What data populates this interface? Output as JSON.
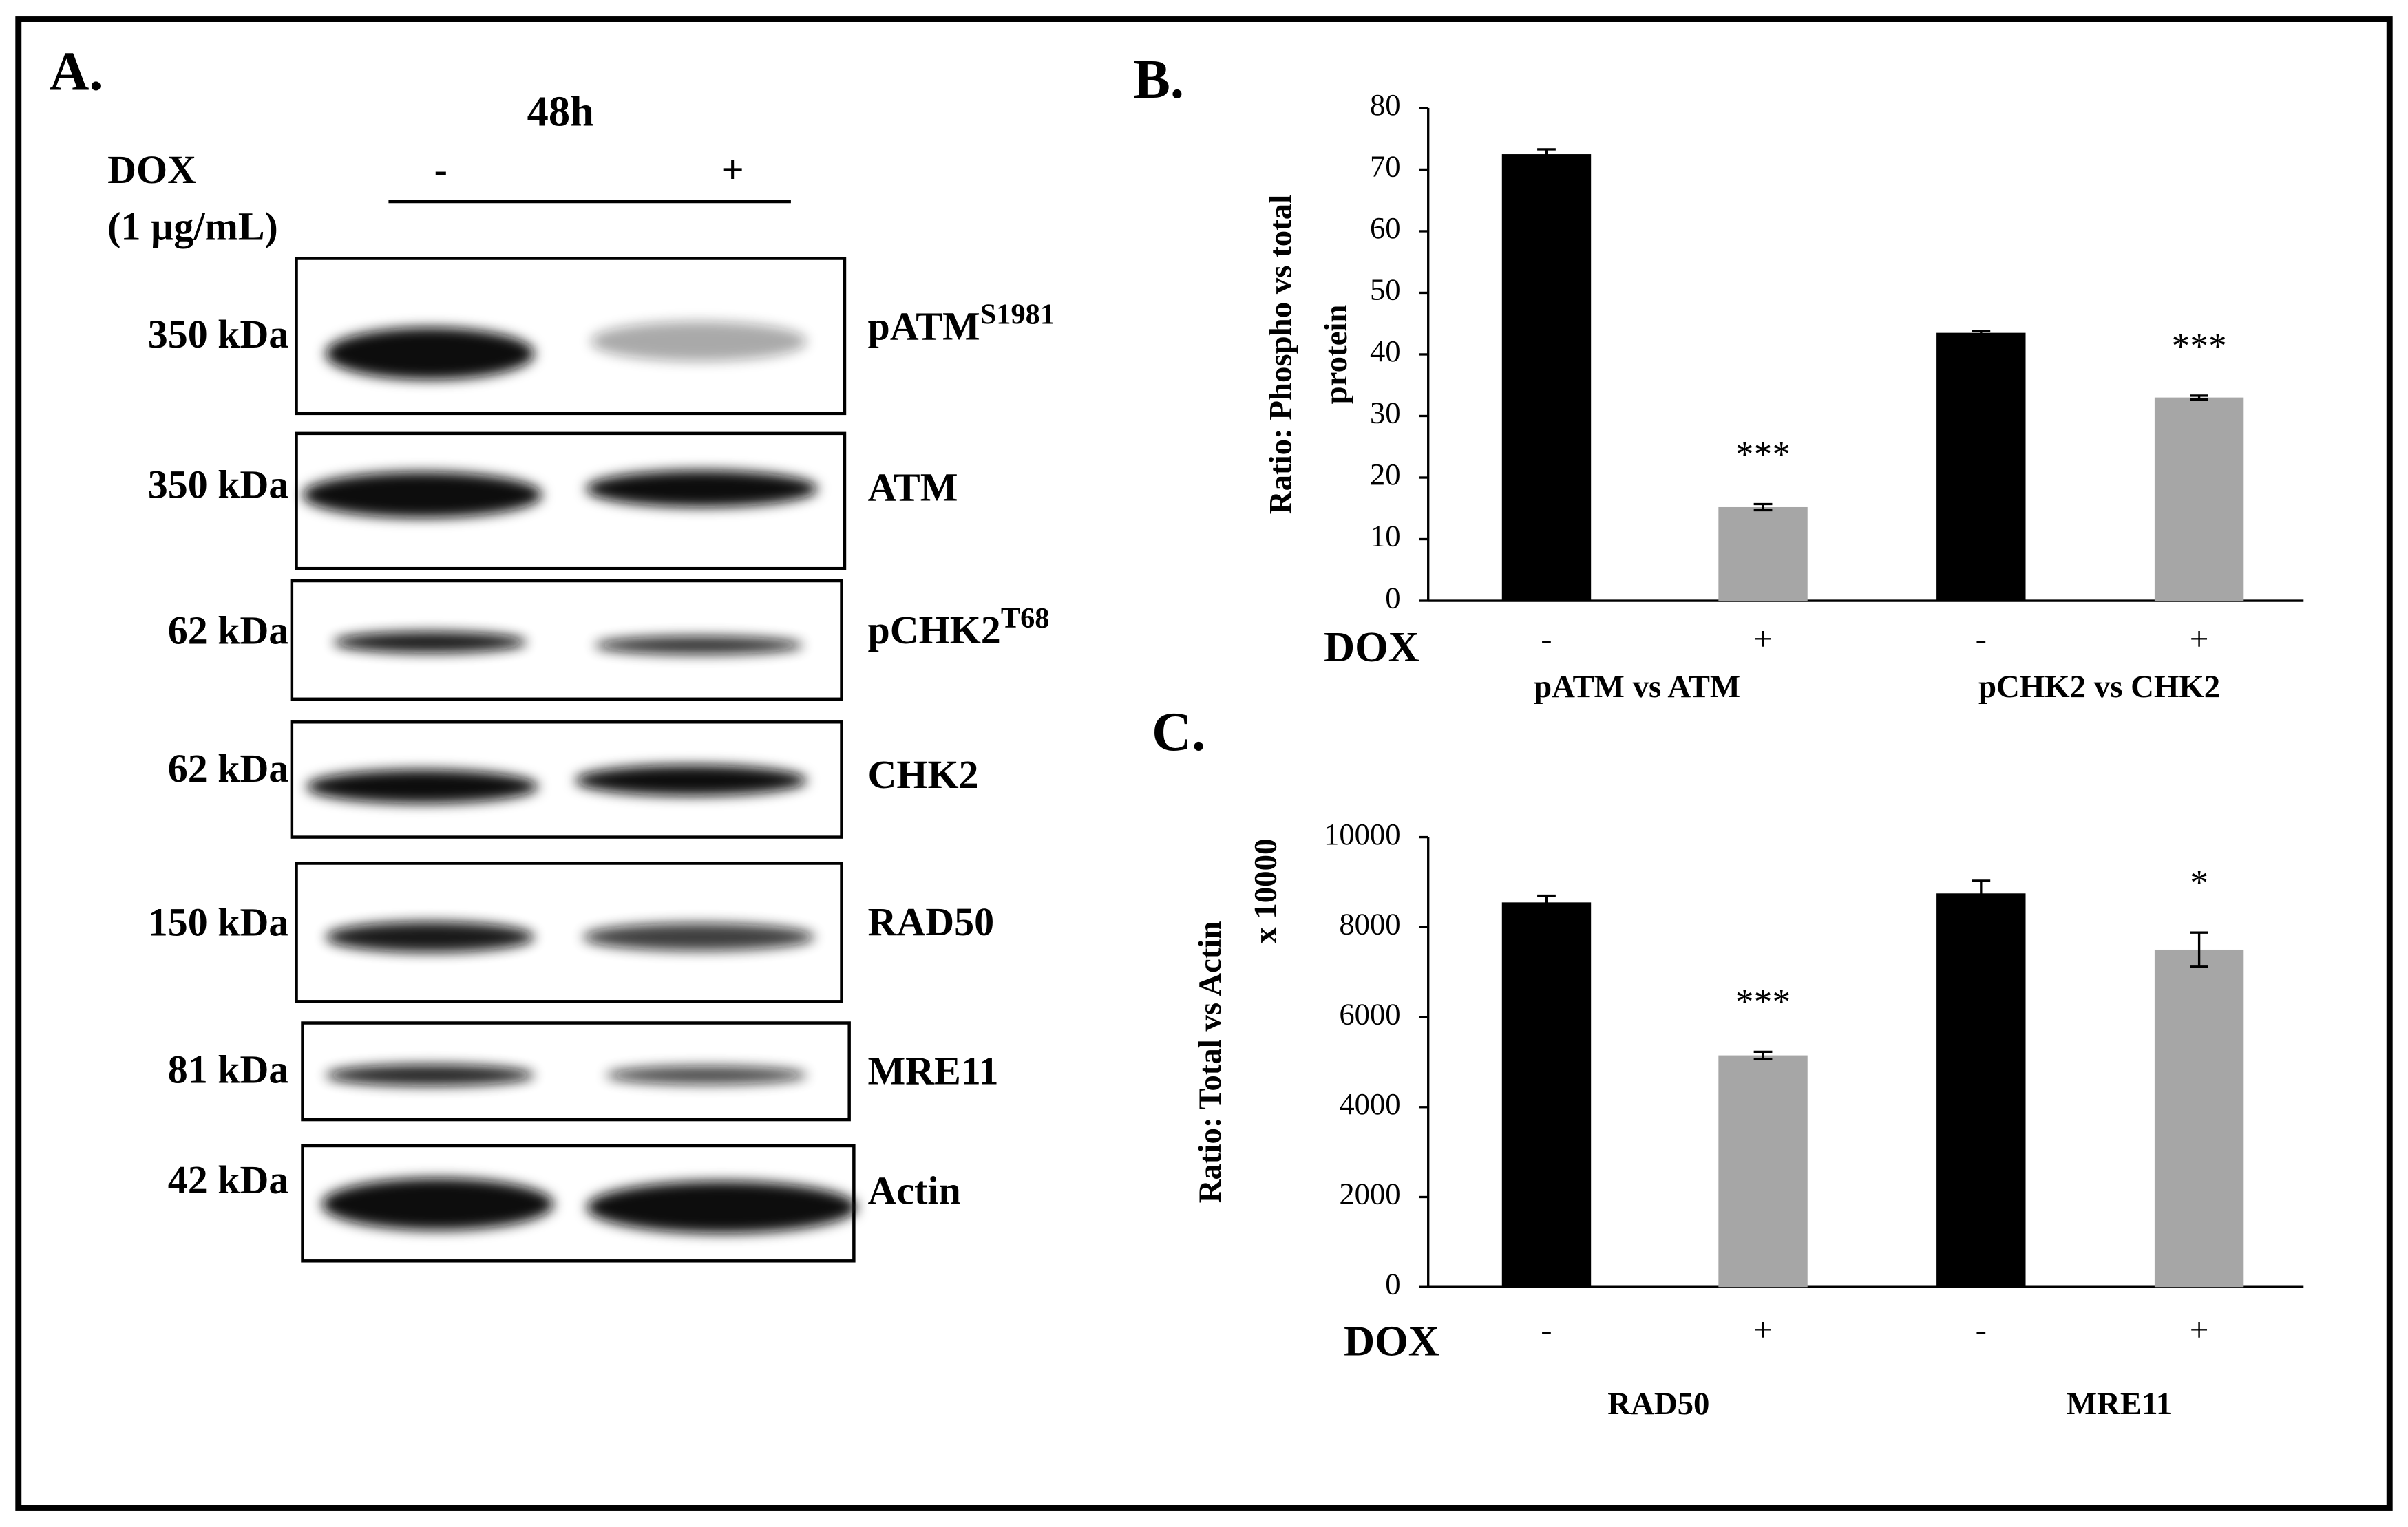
{
  "blot": {
    "panel_label": "A.",
    "time": "48h",
    "treatment": "DOX",
    "dose": "(1 µg/mL)",
    "lanes": [
      "-",
      "+"
    ],
    "rows": [
      {
        "size": "350 kDa",
        "protein": "pATM",
        "site": "S1981"
      },
      {
        "size": "350 kDa",
        "protein": "ATM"
      },
      {
        "size": "62 kDa",
        "protein": "pCHK2",
        "site": "T68"
      },
      {
        "size": "62 kDa",
        "protein": "CHK2"
      },
      {
        "size": "150 kDa",
        "protein": "RAD50"
      },
      {
        "size": "81 kDa",
        "protein": "MRE11"
      },
      {
        "size": "42 kDa",
        "protein": "Actin"
      }
    ]
  },
  "chart_data": [
    {
      "type": "bar",
      "panel_label": "B.",
      "y_label": [
        "Ratio: Phospho vs total",
        "protein"
      ],
      "x_label": "DOX",
      "categories": [
        "-",
        "+",
        "-",
        "+"
      ],
      "groups": [
        "pATM  vs ATM",
        "pCHK2  vs CHK2"
      ],
      "values": [
        72.5,
        15.2,
        43.5,
        33.0
      ],
      "errors": [
        0.8,
        0.5,
        0.3,
        0.3
      ],
      "colors": [
        "#000000",
        "#a6a6a6",
        "#000000",
        "#a6a6a6"
      ],
      "annotations": [
        null,
        "***",
        null,
        "***"
      ],
      "ylim": [
        0,
        80
      ],
      "yticks": [
        0,
        10,
        20,
        30,
        40,
        50,
        60,
        70,
        80
      ]
    },
    {
      "type": "bar",
      "panel_label": "C.",
      "y_label": [
        "Ratio: Total vs Actin"
      ],
      "y_scale_label": "x 10000",
      "x_label": "DOX",
      "categories": [
        "-",
        "+",
        "-",
        "+"
      ],
      "groups": [
        "RAD50",
        "MRE11"
      ],
      "values": [
        8550,
        5150,
        8750,
        7500
      ],
      "errors": [
        150,
        80,
        280,
        380
      ],
      "colors": [
        "#000000",
        "#a6a6a6",
        "#000000",
        "#a6a6a6"
      ],
      "annotations": [
        null,
        "***",
        null,
        "*"
      ],
      "ylim": [
        0,
        10000
      ],
      "yticks": [
        0,
        2000,
        4000,
        6000,
        8000,
        10000
      ]
    }
  ]
}
